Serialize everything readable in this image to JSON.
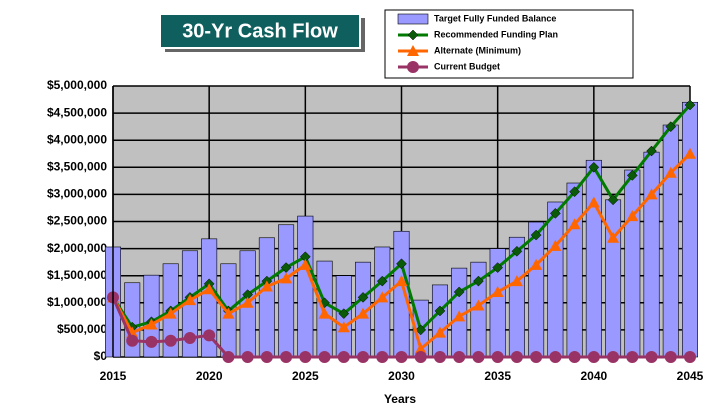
{
  "chart_data": {
    "type": "combo",
    "title": "30-Yr Cash Flow",
    "x_label": "Years",
    "x": [
      2015,
      2016,
      2017,
      2018,
      2019,
      2020,
      2021,
      2022,
      2023,
      2024,
      2025,
      2026,
      2027,
      2028,
      2029,
      2030,
      2031,
      2032,
      2033,
      2034,
      2035,
      2036,
      2037,
      2038,
      2039,
      2040,
      2041,
      2042,
      2043,
      2044,
      2045
    ],
    "xlim": [
      2015,
      2045
    ],
    "xticks": [
      2015,
      2020,
      2025,
      2030,
      2035,
      2040,
      2045
    ],
    "ylim": [
      0,
      5000000
    ],
    "yticks": [
      {
        "value": 0,
        "label": "$0"
      },
      {
        "value": 500000,
        "label": "$500,000"
      },
      {
        "value": 1000000,
        "label": "$1,000,000"
      },
      {
        "value": 1500000,
        "label": "$1,500,000"
      },
      {
        "value": 2000000,
        "label": "$2,000,000"
      },
      {
        "value": 2500000,
        "label": "$2,500,000"
      },
      {
        "value": 3000000,
        "label": "$3,000,000"
      },
      {
        "value": 3500000,
        "label": "$3,500,000"
      },
      {
        "value": 4000000,
        "label": "$4,000,000"
      },
      {
        "value": 4500000,
        "label": "$4,500,000"
      },
      {
        "value": 5000000,
        "label": "$5,000,000"
      }
    ],
    "grid": true,
    "series": [
      {
        "name": "Target Fully Funded Balance",
        "kind": "bar",
        "color": "#9999ff",
        "values": [
          2030000,
          1370000,
          1510000,
          1720000,
          1960000,
          2180000,
          1720000,
          1960000,
          2200000,
          2440000,
          2600000,
          1770000,
          1500000,
          1750000,
          2030000,
          2320000,
          1050000,
          1330000,
          1640000,
          1750000,
          2000000,
          2210000,
          2490000,
          2860000,
          3210000,
          3630000,
          2900000,
          3450000,
          3780000,
          4280000,
          4700000
        ]
      },
      {
        "name": "Recommended Funding Plan",
        "kind": "line",
        "marker": "diamond",
        "color": "#007a00",
        "values": [
          1100000,
          550000,
          650000,
          850000,
          1100000,
          1350000,
          850000,
          1150000,
          1400000,
          1650000,
          1850000,
          1000000,
          800000,
          1100000,
          1400000,
          1720000,
          500000,
          850000,
          1200000,
          1400000,
          1650000,
          1950000,
          2250000,
          2650000,
          3050000,
          3500000,
          2900000,
          3350000,
          3800000,
          4250000,
          4650000
        ]
      },
      {
        "name": "Alternate (Minimum)",
        "kind": "line",
        "marker": "triangle",
        "color": "#ff6600",
        "values": [
          1100000,
          450000,
          600000,
          800000,
          1050000,
          1250000,
          800000,
          1000000,
          1300000,
          1450000,
          1700000,
          800000,
          550000,
          800000,
          1100000,
          1400000,
          150000,
          450000,
          750000,
          950000,
          1200000,
          1400000,
          1700000,
          2050000,
          2450000,
          2850000,
          2200000,
          2600000,
          3000000,
          3400000,
          3750000
        ]
      },
      {
        "name": "Current Budget",
        "kind": "line",
        "marker": "circle",
        "color": "#993366",
        "values": [
          1100000,
          300000,
          280000,
          300000,
          350000,
          400000,
          0,
          0,
          0,
          0,
          0,
          0,
          0,
          0,
          0,
          0,
          0,
          0,
          0,
          0,
          0,
          0,
          0,
          0,
          0,
          0,
          0,
          0,
          0,
          0,
          0
        ]
      }
    ]
  }
}
